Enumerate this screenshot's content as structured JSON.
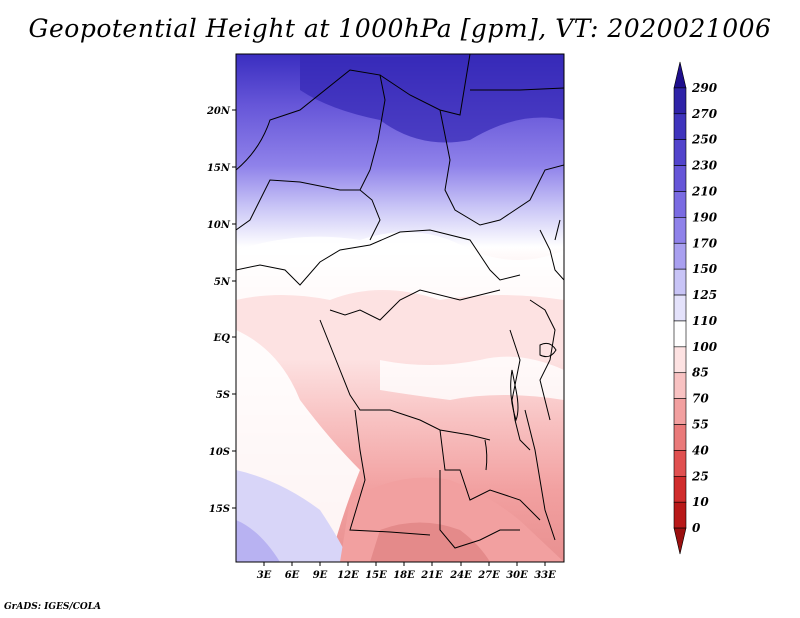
{
  "title": "Geopotential Height at 1000hPa [gpm], VT: 2020021006",
  "credit": "GrADS: IGES/COLA",
  "map": {
    "lon_ticks": [
      "3E",
      "6E",
      "9E",
      "12E",
      "15E",
      "18E",
      "21E",
      "24E",
      "27E",
      "30E",
      "33E"
    ],
    "lat_ticks": [
      "20N",
      "15N",
      "10N",
      "5N",
      "EQ",
      "5S",
      "10S",
      "15S"
    ]
  },
  "colorbar": {
    "labels": [
      "290",
      "270",
      "250",
      "230",
      "210",
      "190",
      "170",
      "150",
      "125",
      "110",
      "100",
      "85",
      "70",
      "55",
      "40",
      "25",
      "10",
      "0"
    ],
    "colors": [
      "#1e0f8c",
      "#2f23a8",
      "#3f34bd",
      "#5244cc",
      "#6656d8",
      "#7a6be2",
      "#8f82ea",
      "#a9a0f0",
      "#c8c4f6",
      "#e4e2fb",
      "#ffffff",
      "#fde2e2",
      "#f8c2c2",
      "#f2a0a0",
      "#ea7a7a",
      "#e05050",
      "#d02c2c",
      "#b81818",
      "#9a0f0f"
    ]
  },
  "colors": {
    "land_border": "#000000",
    "frame": "#000000"
  }
}
